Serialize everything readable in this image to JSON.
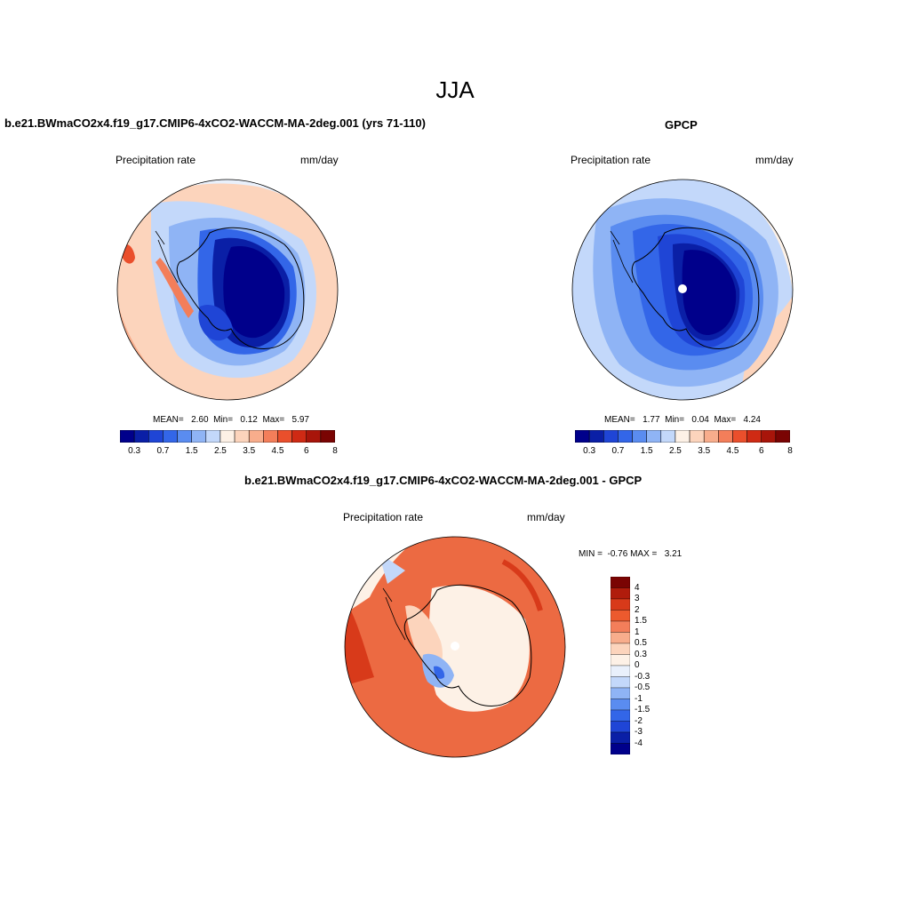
{
  "main_title": "JJA",
  "panels": {
    "model": {
      "title": "b.e21.BWmaCO2x4.f19_g17.CMIP6-4xCO2-WACCM-MA-2deg.001 (yrs 71-110)",
      "left_label": "Precipitation rate",
      "right_label": "mm/day",
      "stats": {
        "mean_label": "MEAN=",
        "mean": "2.60",
        "min_label": "Min=",
        "min": "0.12",
        "max_label": "Max=",
        "max": "5.97"
      }
    },
    "obs": {
      "title": "GPCP",
      "left_label": "Precipitation rate",
      "right_label": "mm/day",
      "stats": {
        "mean_label": "MEAN=",
        "mean": "1.77",
        "min_label": "Min=",
        "min": "0.04",
        "max_label": "Max=",
        "max": "4.24"
      }
    },
    "diff": {
      "title": "b.e21.BWmaCO2x4.f19_g17.CMIP6-4xCO2-WACCM-MA-2deg.001 - GPCP",
      "left_label": "Precipitation rate",
      "right_label": "mm/day",
      "stats": {
        "min_label": "MIN =",
        "min": "-0.76",
        "max_label": "MAX =",
        "max": "3.21"
      }
    }
  },
  "colorbar_abs": {
    "colors": [
      "#00008b",
      "#0a1fa6",
      "#1f45d6",
      "#3366e8",
      "#5a8cf0",
      "#8fb4f5",
      "#c3d8fa",
      "#fdf1e6",
      "#fcd4bc",
      "#f8ad8c",
      "#f37e5a",
      "#ea4f2c",
      "#cf2a14",
      "#a8150a",
      "#7a0403"
    ],
    "tick_labels": [
      "0.3",
      "0.7",
      "1.5",
      "2.5",
      "3.5",
      "4.5",
      "6",
      "8"
    ]
  },
  "colorbar_diff": {
    "colors_top_to_bottom": [
      "#7a0403",
      "#b01c0c",
      "#d83a1a",
      "#ec5a2e",
      "#f37e5a",
      "#f8ad8c",
      "#fcd4bc",
      "#fdf1e6",
      "#e9f0fb",
      "#c3d8fa",
      "#8fb4f5",
      "#5a8cf0",
      "#3366e8",
      "#1f45d6",
      "#0a1fa6",
      "#00008b"
    ],
    "tick_labels": [
      "4",
      "3",
      "2",
      "1.5",
      "1",
      "0.5",
      "0.3",
      "0",
      "-0.3",
      "-0.5",
      "-1",
      "-1.5",
      "-2",
      "-3",
      "-4"
    ]
  },
  "map_colors": {
    "model_bg": "#fcd4bc",
    "obs_bg": "#c3d8fa",
    "diff_bg": "#ec6a42"
  }
}
